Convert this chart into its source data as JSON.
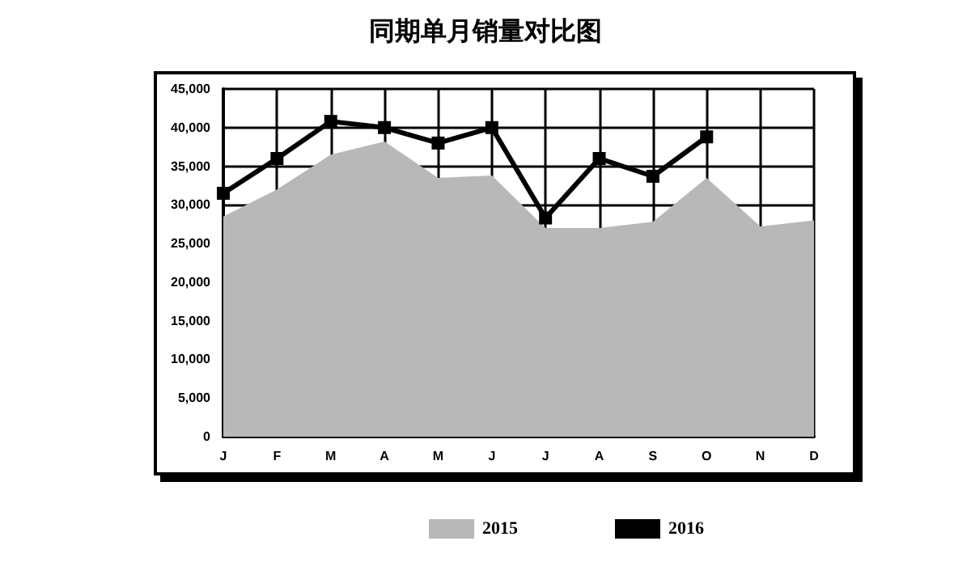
{
  "chart_data": {
    "type": "area",
    "title": "同期单月销量对比图",
    "categories": [
      "J",
      "F",
      "M",
      "A",
      "M",
      "J",
      "J",
      "A",
      "S",
      "O",
      "N",
      "D"
    ],
    "series": [
      {
        "name": "2015",
        "color": "#b8b8b8",
        "values": [
          28500,
          32000,
          36500,
          38200,
          33500,
          33800,
          27000,
          27000,
          27800,
          33500,
          27200,
          28000
        ]
      },
      {
        "name": "2016",
        "type": "line",
        "marker": "square",
        "color": "#000000",
        "values": [
          31500,
          36000,
          40800,
          40000,
          38000,
          40000,
          28300,
          36000,
          33700,
          38800,
          null,
          null
        ]
      }
    ],
    "ylim": [
      0,
      45000
    ],
    "yticks": [
      0,
      {
        "value": 5000,
        "label": "5,000"
      },
      {
        "value": 10000,
        "label": "10,000"
      },
      {
        "value": 15000,
        "label": "15,000"
      },
      {
        "value": 20000,
        "label": "20,000"
      },
      {
        "value": 25000,
        "label": "25,000"
      },
      {
        "value": 30000,
        "label": "30,000"
      },
      {
        "value": 35000,
        "label": "35,000"
      },
      {
        "value": 40000,
        "label": "40,000"
      },
      {
        "value": 45000,
        "label": "45,000"
      }
    ],
    "grid": true,
    "legend": "bottom",
    "line_style": "solid"
  }
}
